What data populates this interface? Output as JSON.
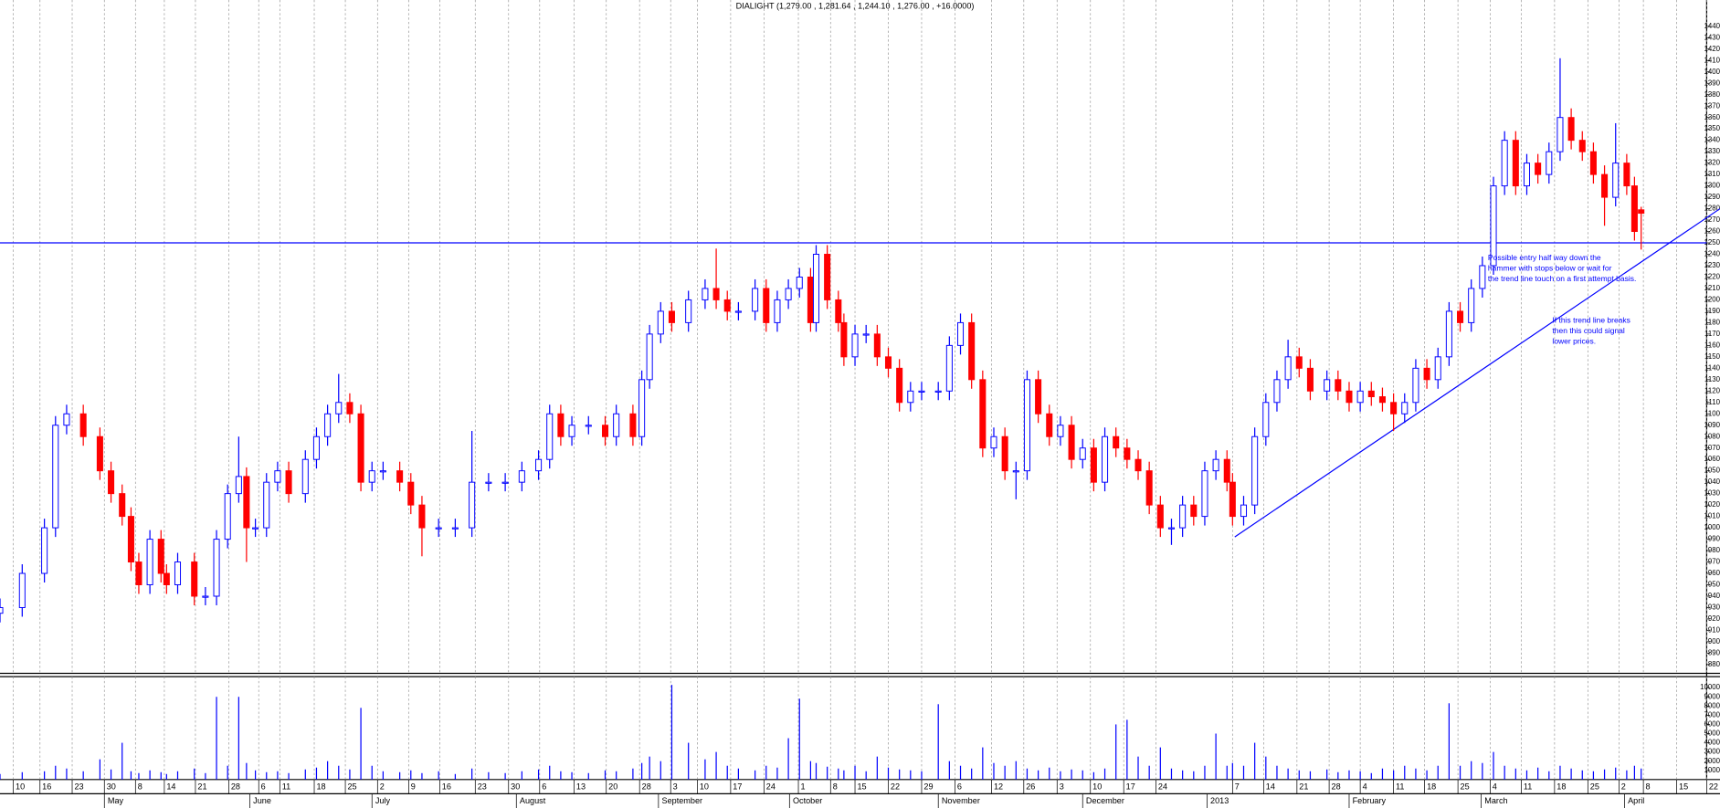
{
  "chart_data": {
    "type": "candlestick",
    "title": "DIALIGHT (1,279.00 , 1,281.64 , 1,244.10 , 1,276.00 , +16.0000)",
    "x": [
      0,
      4,
      8,
      10,
      12,
      15,
      18,
      20,
      22,
      23.6,
      25,
      27,
      29,
      30,
      32,
      35,
      37,
      39,
      41,
      43,
      44.4,
      46,
      48,
      50,
      52,
      55,
      57,
      59,
      61,
      63,
      65,
      67,
      69,
      72,
      74,
      76,
      79,
      82,
      85,
      88,
      91,
      94,
      97,
      99,
      101,
      103,
      106,
      109,
      111,
      114,
      115.6,
      117,
      119,
      121,
      124,
      127,
      129,
      131,
      133,
      136,
      138,
      140,
      142,
      144,
      146,
      147,
      149,
      151,
      152,
      154,
      156,
      158,
      160,
      162,
      164,
      166,
      169,
      171,
      173,
      175,
      177,
      179,
      181,
      183,
      185,
      187,
      189,
      191,
      193,
      195,
      197,
      199,
      201,
      203,
      205,
      207,
      209,
      211,
      213,
      215,
      217,
      219,
      221,
      222,
      224,
      226,
      228,
      230,
      232,
      234,
      236,
      239,
      241,
      243,
      245,
      247,
      249,
      251,
      253,
      255,
      257,
      259,
      261,
      263,
      265,
      267,
      269,
      271,
      273,
      275,
      277,
      279,
      281,
      283,
      285,
      287,
      289,
      291,
      293,
      294.4,
      295.6
    ],
    "open": [
      925,
      930,
      960,
      1000,
      1090,
      1100,
      1080,
      1050,
      1030,
      1010,
      970,
      950,
      990,
      960,
      950,
      970,
      940,
      940,
      990,
      1030,
      1045,
      1000,
      1000,
      1040,
      1050,
      1030,
      1060,
      1080,
      1100,
      1110,
      1100,
      1040,
      1050,
      1050,
      1040,
      1020,
      1000,
      1000,
      1000,
      1040,
      1040,
      1040,
      1050,
      1060,
      1100,
      1080,
      1090,
      1090,
      1080,
      1100,
      1080,
      1130,
      1170,
      1190,
      1180,
      1200,
      1210,
      1200,
      1190,
      1190,
      1210,
      1180,
      1200,
      1210,
      1220,
      1180,
      1240,
      1200,
      1180,
      1150,
      1170,
      1170,
      1150,
      1140,
      1110,
      1120,
      1120,
      1120,
      1160,
      1180,
      1130,
      1070,
      1080,
      1050,
      1050,
      1130,
      1100,
      1080,
      1090,
      1060,
      1070,
      1040,
      1080,
      1070,
      1060,
      1050,
      1020,
      1000,
      1000,
      1020,
      1010,
      1050,
      1060,
      1040,
      1010,
      1020,
      1080,
      1110,
      1130,
      1150,
      1140,
      1120,
      1130,
      1120,
      1110,
      1120,
      1115,
      1110,
      1100,
      1110,
      1140,
      1130,
      1150,
      1190,
      1180,
      1210,
      1230,
      1300,
      1340,
      1300,
      1320,
      1310,
      1330,
      1360,
      1340,
      1330,
      1310,
      1290,
      1320,
      1300,
      1279
    ],
    "high": [
      938,
      968,
      1008,
      1098,
      1108,
      1108,
      1088,
      1058,
      1038,
      1018,
      978,
      998,
      998,
      968,
      978,
      978,
      948,
      998,
      1038,
      1080,
      1053,
      1008,
      1048,
      1058,
      1058,
      1068,
      1088,
      1108,
      1135,
      1118,
      1108,
      1058,
      1058,
      1058,
      1048,
      1028,
      1008,
      1008,
      1085,
      1048,
      1048,
      1058,
      1068,
      1108,
      1108,
      1098,
      1098,
      1098,
      1108,
      1108,
      1138,
      1178,
      1198,
      1198,
      1208,
      1218,
      1245,
      1208,
      1198,
      1218,
      1218,
      1208,
      1218,
      1228,
      1228,
      1248,
      1248,
      1208,
      1188,
      1178,
      1178,
      1178,
      1158,
      1148,
      1128,
      1128,
      1128,
      1168,
      1188,
      1188,
      1138,
      1088,
      1088,
      1058,
      1138,
      1138,
      1108,
      1098,
      1098,
      1078,
      1078,
      1088,
      1088,
      1078,
      1068,
      1058,
      1028,
      1008,
      1028,
      1028,
      1058,
      1068,
      1068,
      1048,
      1028,
      1088,
      1118,
      1138,
      1165,
      1158,
      1148,
      1138,
      1138,
      1128,
      1128,
      1128,
      1123,
      1118,
      1118,
      1148,
      1148,
      1158,
      1198,
      1198,
      1218,
      1238,
      1308,
      1348,
      1348,
      1328,
      1328,
      1338,
      1412,
      1368,
      1348,
      1338,
      1318,
      1355,
      1328,
      1308,
      1281.64
    ],
    "low": [
      917,
      922,
      952,
      992,
      1082,
      1072,
      1042,
      1022,
      1002,
      962,
      942,
      942,
      952,
      942,
      942,
      932,
      932,
      932,
      982,
      1022,
      970,
      992,
      992,
      1032,
      1022,
      1022,
      1052,
      1072,
      1092,
      1092,
      1032,
      1032,
      1042,
      1032,
      1012,
      975,
      992,
      992,
      992,
      1032,
      1032,
      1032,
      1042,
      1052,
      1072,
      1072,
      1082,
      1072,
      1072,
      1072,
      1072,
      1122,
      1162,
      1172,
      1172,
      1192,
      1192,
      1182,
      1182,
      1182,
      1172,
      1172,
      1192,
      1202,
      1172,
      1172,
      1192,
      1172,
      1142,
      1142,
      1162,
      1142,
      1132,
      1102,
      1102,
      1112,
      1112,
      1112,
      1152,
      1122,
      1062,
      1062,
      1042,
      1025,
      1042,
      1092,
      1072,
      1072,
      1052,
      1052,
      1032,
      1032,
      1062,
      1052,
      1042,
      1012,
      992,
      985,
      992,
      1002,
      1002,
      1042,
      1032,
      1002,
      1002,
      1012,
      1072,
      1102,
      1122,
      1132,
      1112,
      1112,
      1112,
      1102,
      1102,
      1107,
      1102,
      1085,
      1092,
      1102,
      1122,
      1122,
      1142,
      1172,
      1172,
      1202,
      1222,
      1292,
      1292,
      1292,
      1302,
      1302,
      1322,
      1332,
      1322,
      1302,
      1265,
      1282,
      1292,
      1252,
      1244.1
    ],
    "close": [
      930,
      960,
      1000,
      1090,
      1100,
      1080,
      1050,
      1030,
      1010,
      970,
      950,
      990,
      960,
      950,
      970,
      940,
      940,
      990,
      1030,
      1045,
      1000,
      1000,
      1040,
      1050,
      1030,
      1060,
      1080,
      1100,
      1110,
      1100,
      1040,
      1050,
      1050,
      1040,
      1020,
      1000,
      1000,
      1000,
      1040,
      1040,
      1040,
      1050,
      1060,
      1100,
      1080,
      1090,
      1090,
      1080,
      1100,
      1080,
      1130,
      1170,
      1190,
      1180,
      1200,
      1210,
      1200,
      1190,
      1190,
      1210,
      1180,
      1200,
      1210,
      1220,
      1180,
      1240,
      1200,
      1180,
      1150,
      1170,
      1170,
      1150,
      1140,
      1110,
      1120,
      1120,
      1120,
      1160,
      1180,
      1130,
      1070,
      1080,
      1050,
      1050,
      1130,
      1100,
      1080,
      1090,
      1060,
      1070,
      1040,
      1080,
      1070,
      1060,
      1050,
      1020,
      1000,
      1000,
      1020,
      1010,
      1050,
      1060,
      1040,
      1010,
      1020,
      1080,
      1110,
      1130,
      1150,
      1140,
      1120,
      1130,
      1120,
      1110,
      1120,
      1115,
      1110,
      1100,
      1110,
      1140,
      1130,
      1150,
      1190,
      1180,
      1210,
      1230,
      1300,
      1340,
      1300,
      1320,
      1310,
      1330,
      1360,
      1340,
      1330,
      1310,
      1290,
      1320,
      1300,
      1260,
      1276
    ],
    "up_color": "#0000ff",
    "down_color": "#ff0000",
    "xlim": [
      0,
      307.4
    ],
    "ylim": [
      872.3,
      1463.1
    ],
    "yticks": [
      880,
      890,
      900,
      910,
      920,
      930,
      940,
      950,
      960,
      970,
      980,
      990,
      1000,
      1010,
      1020,
      1030,
      1040,
      1050,
      1060,
      1070,
      1080,
      1090,
      1100,
      1110,
      1120,
      1130,
      1140,
      1150,
      1160,
      1170,
      1180,
      1190,
      1200,
      1210,
      1220,
      1230,
      1240,
      1250,
      1260,
      1270,
      1280,
      1290,
      1300,
      1310,
      1320,
      1330,
      1340,
      1350,
      1360,
      1370,
      1380,
      1390,
      1400,
      1410,
      1420,
      1430,
      1440
    ],
    "xticks": [
      {
        "value": 2.4,
        "label": "10"
      },
      {
        "value": 7.2,
        "label": "16"
      },
      {
        "value": 13,
        "label": "23"
      },
      {
        "value": 18.8,
        "label": "30"
      },
      {
        "value": 24.4,
        "label": "8"
      },
      {
        "value": 29.6,
        "label": "14"
      },
      {
        "value": 35.2,
        "label": "21"
      },
      {
        "value": 41.2,
        "label": "28"
      },
      {
        "value": 46.6,
        "label": "6"
      },
      {
        "value": 50.4,
        "label": "11"
      },
      {
        "value": 56.6,
        "label": "18"
      },
      {
        "value": 62.2,
        "label": "25"
      },
      {
        "value": 68,
        "label": "2"
      },
      {
        "value": 73.6,
        "label": "9"
      },
      {
        "value": 79.2,
        "label": "16"
      },
      {
        "value": 85.6,
        "label": "23"
      },
      {
        "value": 91.6,
        "label": "30"
      },
      {
        "value": 97.2,
        "label": "6"
      },
      {
        "value": 103.4,
        "label": "13"
      },
      {
        "value": 109.2,
        "label": "20"
      },
      {
        "value": 115.2,
        "label": "28"
      },
      {
        "value": 120.8,
        "label": "3"
      },
      {
        "value": 125.6,
        "label": "10"
      },
      {
        "value": 131.6,
        "label": "17"
      },
      {
        "value": 137.6,
        "label": "24"
      },
      {
        "value": 143.8,
        "label": "1"
      },
      {
        "value": 149.6,
        "label": "8"
      },
      {
        "value": 154,
        "label": "15"
      },
      {
        "value": 160,
        "label": "22"
      },
      {
        "value": 166,
        "label": "29"
      },
      {
        "value": 172,
        "label": "6"
      },
      {
        "value": 178.6,
        "label": "12"
      },
      {
        "value": 184.4,
        "label": "26"
      },
      {
        "value": 190.4,
        "label": "3"
      },
      {
        "value": 196.4,
        "label": "10"
      },
      {
        "value": 202.4,
        "label": "17"
      },
      {
        "value": 208.2,
        "label": "24"
      },
      {
        "value": 222,
        "label": "7"
      },
      {
        "value": 227.6,
        "label": "14"
      },
      {
        "value": 233.6,
        "label": "21"
      },
      {
        "value": 239.4,
        "label": "28"
      },
      {
        "value": 245,
        "label": "4"
      },
      {
        "value": 251,
        "label": "11"
      },
      {
        "value": 256.6,
        "label": "18"
      },
      {
        "value": 262.6,
        "label": "25"
      },
      {
        "value": 268.4,
        "label": "4"
      },
      {
        "value": 274,
        "label": "11"
      },
      {
        "value": 280,
        "label": "18"
      },
      {
        "value": 286,
        "label": "25"
      },
      {
        "value": 291.6,
        "label": "2"
      },
      {
        "value": 296,
        "label": "8"
      },
      {
        "value": 302,
        "label": "15"
      },
      {
        "value": 307.4,
        "label": "22"
      }
    ],
    "month_ticks": [
      {
        "value": 19.4,
        "label": "May"
      },
      {
        "value": 45.6,
        "label": "June"
      },
      {
        "value": 67.6,
        "label": "July"
      },
      {
        "value": 93.6,
        "label": "August"
      },
      {
        "value": 119.2,
        "label": "September"
      },
      {
        "value": 142.8,
        "label": "October"
      },
      {
        "value": 169.6,
        "label": "November"
      },
      {
        "value": 195.6,
        "label": "December"
      },
      {
        "value": 218,
        "label": "2013"
      },
      {
        "value": 243.6,
        "label": "February"
      },
      {
        "value": 267.4,
        "label": "March"
      },
      {
        "value": 293.2,
        "label": "April"
      }
    ],
    "grid": true,
    "volume": {
      "values": [
        600,
        800,
        900,
        1500,
        1200,
        900,
        2200,
        1100,
        4000,
        900,
        700,
        1000,
        800,
        600,
        900,
        1200,
        700,
        9000,
        1500,
        9000,
        1800,
        1000,
        800,
        900,
        700,
        1100,
        1300,
        2000,
        1500,
        1100,
        7800,
        1500,
        900,
        800,
        1000,
        700,
        900,
        600,
        1200,
        800,
        700,
        900,
        1100,
        1500,
        900,
        800,
        700,
        1000,
        900,
        1200,
        1800,
        2500,
        2000,
        10300,
        4000,
        2200,
        3000,
        1500,
        1200,
        1000,
        1500,
        1300,
        4500,
        8800,
        2000,
        1800,
        1400,
        1200,
        1000,
        1500,
        900,
        2500,
        1300,
        1100,
        1000,
        900,
        8200,
        2000,
        1500,
        1200,
        3500,
        1800,
        1500,
        2000,
        1200,
        1000,
        1300,
        900,
        1100,
        1000,
        800,
        1200,
        6000,
        6500,
        2500,
        1500,
        3500,
        1200,
        1000,
        900,
        1500,
        5000,
        1500,
        1800,
        1500,
        4000,
        2500,
        1500,
        1200,
        1000,
        900,
        1100,
        800,
        1000,
        900,
        700,
        1200,
        1000,
        1500,
        1200,
        1000,
        1500,
        8300,
        1500,
        2000,
        1800,
        3000,
        1500,
        1200,
        1000,
        1300,
        900,
        1500,
        1200,
        1000,
        900,
        1100,
        1300,
        1000,
        1500,
        1200
      ],
      "color": "#0000ff",
      "ylim": [
        0,
        11200
      ],
      "yticks": [
        1000,
        2000,
        3000,
        4000,
        5000,
        6000,
        7000,
        8000,
        9000,
        10000
      ]
    },
    "hline": {
      "value": 1250,
      "color": "#0000ff"
    },
    "trendline": {
      "x": [
        222.4,
        309.8
      ],
      "y": [
        992,
        1280
      ],
      "color": "#0000ff"
    },
    "annotations": [
      {
        "lines": [
          "Possible entry half way down the",
          "hammer with stops below or wait for",
          "the trend line touch on a first attempt basis."
        ]
      },
      {
        "lines": [
          "If this trend line breaks",
          "then this could signal",
          "lower prices."
        ]
      }
    ]
  }
}
